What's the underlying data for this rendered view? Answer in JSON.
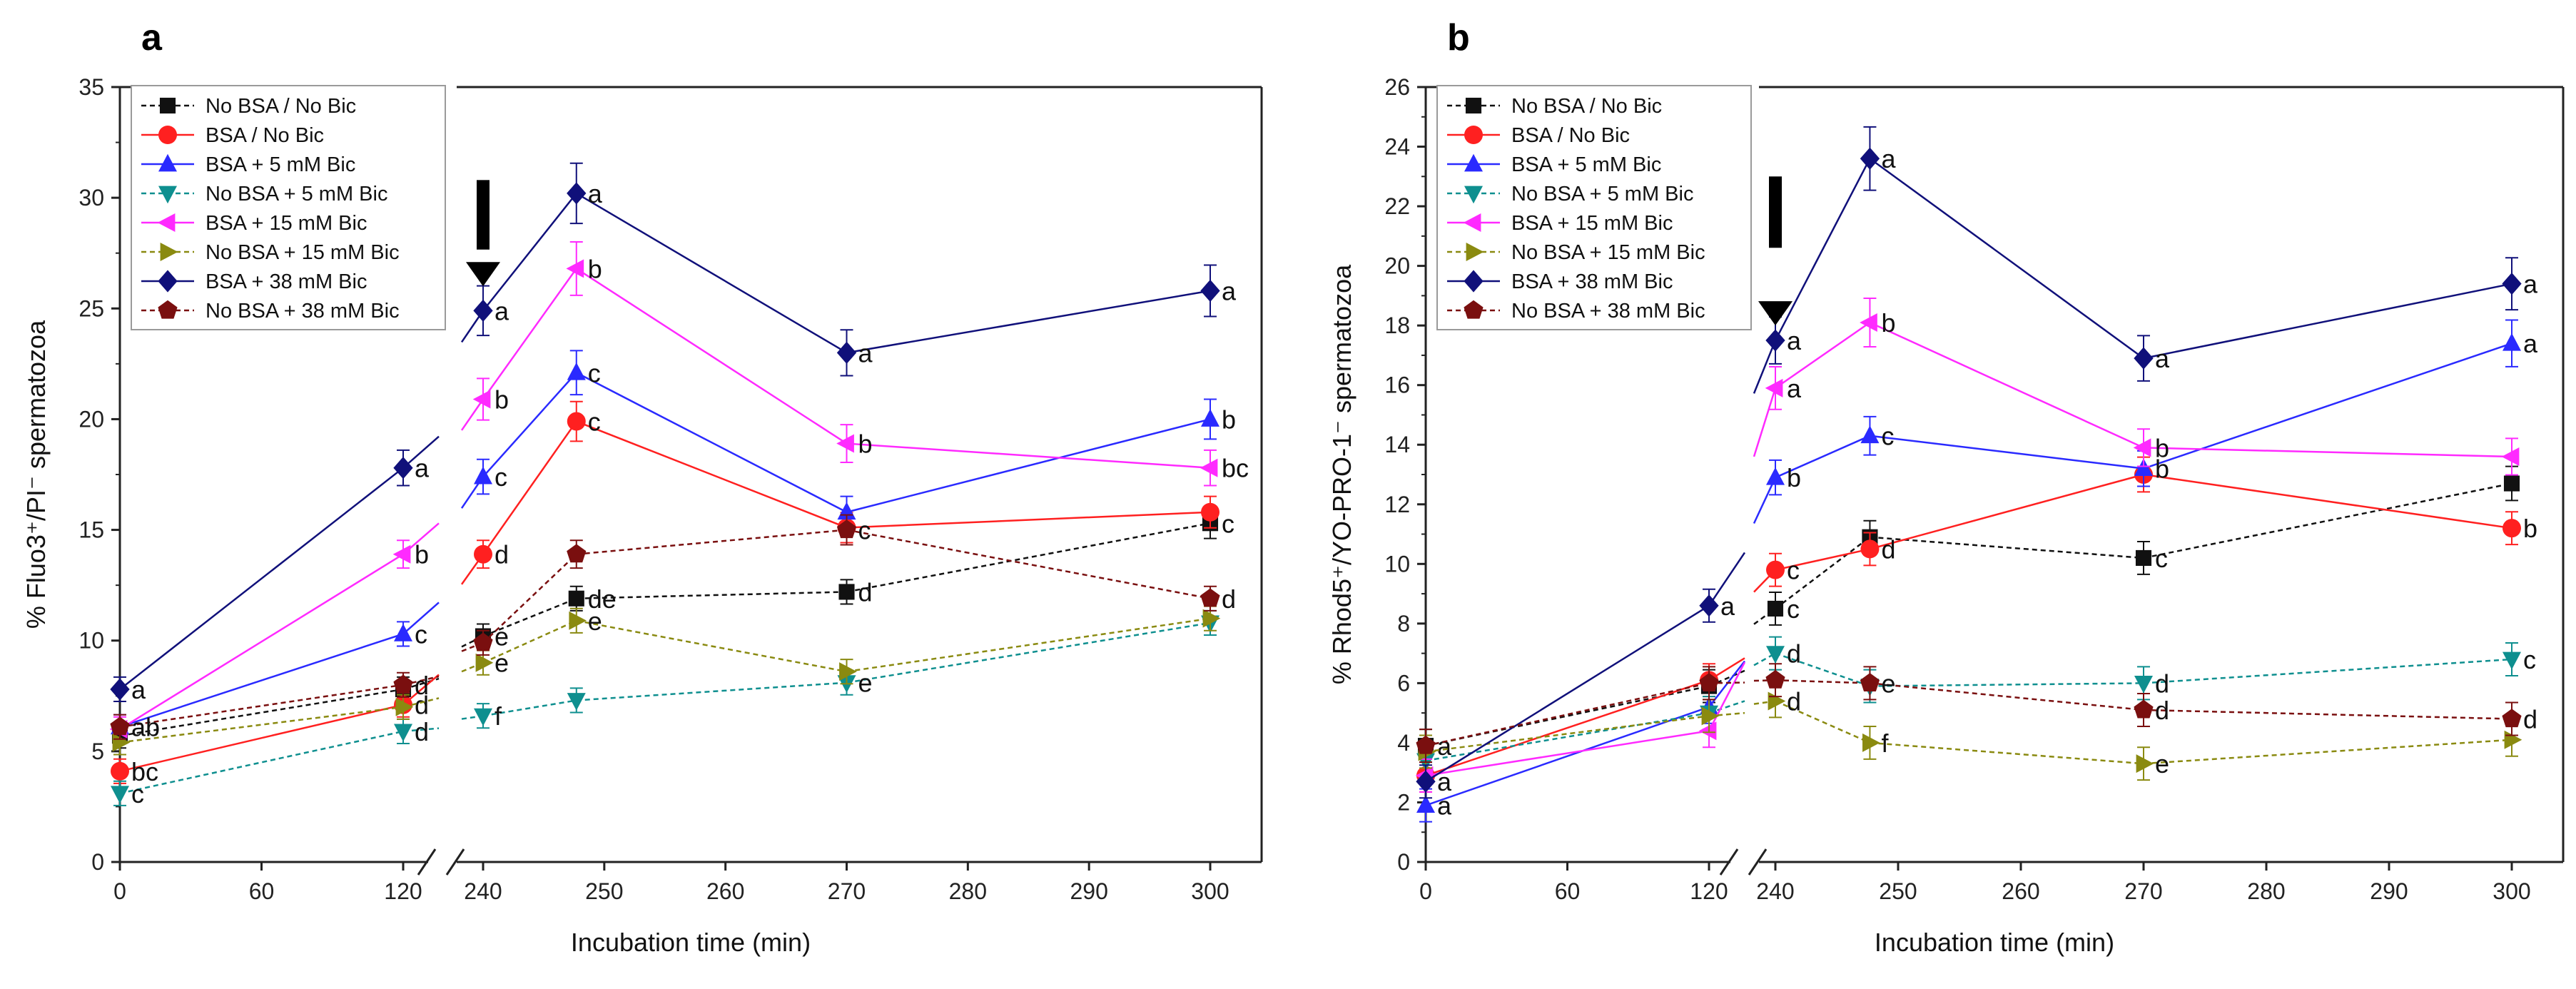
{
  "chart_data": [
    {
      "type": "line",
      "panel_label": "a",
      "ylabel": "% Fluo3⁺/PI⁻ spermatozoa",
      "xlabel": "Incubation time (min)",
      "ylim": [
        0,
        35
      ],
      "yticks": [
        0,
        5,
        10,
        15,
        20,
        25,
        30,
        35
      ],
      "x_tick_labels": [
        "0",
        "60",
        "120",
        "240",
        "250",
        "260",
        "270",
        "280",
        "290",
        "300"
      ],
      "x_tick_values": [
        0,
        60,
        120,
        240,
        250,
        260,
        270,
        280,
        290,
        300
      ],
      "axis_break_between": [
        120,
        240
      ],
      "arrow_at_x": 240,
      "x": [
        0,
        120,
        240,
        245,
        270,
        300
      ],
      "series": [
        {
          "name": "No BSA / No Bic",
          "values": [
            5.7,
            7.8,
            10.2,
            11.9,
            12.2,
            15.3
          ],
          "letters": [
            "",
            "",
            "e",
            "de",
            "d",
            "c"
          ]
        },
        {
          "name": "BSA / No Bic",
          "values": [
            4.1,
            7.1,
            13.9,
            19.9,
            15.1,
            15.8
          ],
          "letters": [
            "bc",
            "d",
            "d",
            "c",
            "",
            ""
          ]
        },
        {
          "name": "BSA + 5 mM Bic",
          "values": [
            6.1,
            10.3,
            17.4,
            22.1,
            15.8,
            20.0
          ],
          "letters": [
            "",
            "c",
            "c",
            "c",
            "",
            "b"
          ]
        },
        {
          "name": "No BSA + 5 mM Bic",
          "values": [
            3.1,
            5.9,
            6.6,
            7.3,
            8.1,
            10.8
          ],
          "letters": [
            "c",
            "d",
            "f",
            "",
            "e",
            ""
          ]
        },
        {
          "name": "BSA + 15 mM Bic",
          "values": [
            6.0,
            13.9,
            20.9,
            26.8,
            18.9,
            17.8
          ],
          "letters": [
            "",
            "b",
            "b",
            "b",
            "b",
            "bc"
          ]
        },
        {
          "name": "No BSA + 15 mM Bic",
          "values": [
            5.4,
            7.0,
            9.0,
            10.9,
            8.6,
            11.0
          ],
          "letters": [
            "",
            "",
            "e",
            "e",
            "",
            ""
          ]
        },
        {
          "name": "BSA + 38 mM Bic",
          "values": [
            7.8,
            17.8,
            24.9,
            30.2,
            23.0,
            25.8
          ],
          "letters": [
            "a",
            "a",
            "a",
            "a",
            "a",
            "a"
          ]
        },
        {
          "name": "No BSA  + 38 mM Bic",
          "values": [
            6.1,
            8.0,
            9.9,
            13.9,
            15.0,
            11.9
          ],
          "letters": [
            "ab",
            "d",
            "",
            "",
            "c",
            "d"
          ]
        }
      ]
    },
    {
      "type": "line",
      "panel_label": "b",
      "ylabel": "% Rhod5⁺/YO-PRO-1⁻ spermatozoa",
      "xlabel": "Incubation time (min)",
      "ylim": [
        0,
        26
      ],
      "yticks": [
        0,
        2,
        4,
        6,
        8,
        10,
        12,
        14,
        16,
        18,
        20,
        22,
        24,
        26
      ],
      "x_tick_labels": [
        "0",
        "60",
        "120",
        "240",
        "250",
        "260",
        "270",
        "280",
        "290",
        "300"
      ],
      "x_tick_values": [
        0,
        60,
        120,
        240,
        250,
        260,
        270,
        280,
        290,
        300
      ],
      "axis_break_between": [
        120,
        240
      ],
      "arrow_at_x": 240,
      "x": [
        0,
        120,
        240,
        245,
        270,
        300
      ],
      "series": [
        {
          "name": "No BSA / No Bic",
          "values": [
            3.9,
            5.9,
            8.5,
            10.9,
            10.2,
            12.7
          ],
          "letters": [
            "a",
            "",
            "c",
            "",
            "c",
            ""
          ]
        },
        {
          "name": "BSA / No Bic",
          "values": [
            2.9,
            6.1,
            9.8,
            10.5,
            13.0,
            11.2
          ],
          "letters": [
            "",
            "",
            "c",
            "d",
            "",
            "b"
          ]
        },
        {
          "name": "BSA + 5 mM Bic",
          "values": [
            1.9,
            5.2,
            12.9,
            14.3,
            13.2,
            17.4
          ],
          "letters": [
            "a",
            "",
            "b",
            "c",
            "b",
            "a"
          ]
        },
        {
          "name": "No BSA + 5 mM Bic",
          "values": [
            3.4,
            5.0,
            7.0,
            5.9,
            6.0,
            6.8
          ],
          "letters": [
            "",
            "",
            "d",
            "",
            "d",
            "c"
          ]
        },
        {
          "name": "BSA + 15 mM Bic",
          "values": [
            2.9,
            4.4,
            15.9,
            18.1,
            13.9,
            13.6
          ],
          "letters": [
            "",
            "",
            "a",
            "b",
            "b",
            ""
          ]
        },
        {
          "name": "No BSA + 15 mM Bic",
          "values": [
            3.7,
            4.9,
            5.4,
            4.0,
            3.3,
            4.1
          ],
          "letters": [
            "",
            "",
            "d",
            "f",
            "e",
            ""
          ]
        },
        {
          "name": "BSA + 38 mM Bic",
          "values": [
            2.7,
            8.6,
            17.5,
            23.6,
            16.9,
            19.4
          ],
          "letters": [
            "a",
            "a",
            "a",
            "a",
            "a",
            "a"
          ]
        },
        {
          "name": "No BSA  + 38 mM Bic",
          "values": [
            3.9,
            6.0,
            6.1,
            6.0,
            5.1,
            4.8
          ],
          "letters": [
            "",
            "",
            "",
            "e",
            "d",
            "d"
          ]
        }
      ]
    }
  ],
  "series_styles": [
    {
      "color": "#111111",
      "marker": "square",
      "dashed": true
    },
    {
      "color": "#ff2020",
      "marker": "circle",
      "dashed": false
    },
    {
      "color": "#2a2aff",
      "marker": "triangle-up",
      "dashed": false
    },
    {
      "color": "#0e8f8f",
      "marker": "triangle-down",
      "dashed": true
    },
    {
      "color": "#ff2aff",
      "marker": "triangle-left",
      "dashed": false
    },
    {
      "color": "#8a8a10",
      "marker": "triangle-right",
      "dashed": true
    },
    {
      "color": "#10107a",
      "marker": "diamond",
      "dashed": false
    },
    {
      "color": "#7a0f0f",
      "marker": "pentagon",
      "dashed": true
    }
  ]
}
